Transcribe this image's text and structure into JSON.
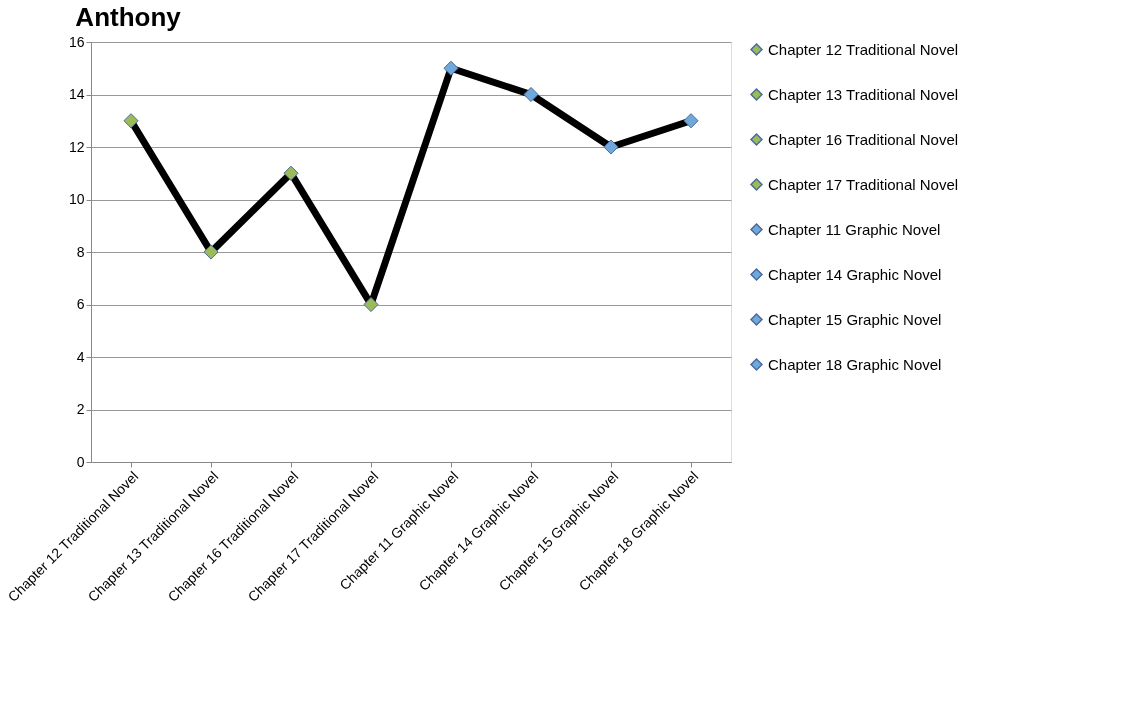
{
  "chart_data": {
    "type": "line",
    "title": "Anthony",
    "categories": [
      "Chapter 12 Traditional Novel",
      "Chapter 13 Traditional Novel",
      "Chapter 16 Traditional Novel",
      "Chapter 17 Traditional Novel",
      "Chapter 11 Graphic Novel",
      "Chapter 14 Graphic Novel",
      "Chapter 15 Graphic Novel",
      "Chapter 18 Graphic Novel"
    ],
    "series": [
      {
        "color": "#000000",
        "marker": "none",
        "values": [
          13,
          8,
          11,
          6,
          15,
          14,
          12,
          13
        ]
      },
      {
        "type": "scatter",
        "name": "Chapter 12 Traditional Novel",
        "color": "#9bbb59",
        "values": [
          13,
          null,
          null,
          null,
          null,
          null,
          null,
          null
        ]
      },
      {
        "type": "scatter",
        "name": "Chapter 13 Traditional Novel",
        "color": "#9bbb59",
        "values": [
          null,
          8,
          null,
          null,
          null,
          null,
          null,
          null
        ]
      },
      {
        "type": "scatter",
        "name": "Chapter 16 Traditional Novel",
        "color": "#9bbb59",
        "values": [
          null,
          null,
          11,
          null,
          null,
          null,
          null,
          null
        ]
      },
      {
        "type": "scatter",
        "name": "Chapter 17 Traditional Novel",
        "color": "#9bbb59",
        "values": [
          null,
          null,
          null,
          6,
          null,
          null,
          null,
          null
        ]
      },
      {
        "type": "scatter",
        "name": "Chapter 11 Graphic Novel",
        "color": "#6fa8dc",
        "values": [
          null,
          null,
          null,
          null,
          15,
          null,
          null,
          null
        ]
      },
      {
        "type": "scatter",
        "name": "Chapter 14 Graphic Novel",
        "color": "#6fa8dc",
        "values": [
          null,
          null,
          null,
          null,
          null,
          14,
          null,
          null
        ]
      },
      {
        "type": "scatter",
        "name": "Chapter 15 Graphic Novel",
        "color": "#6fa8dc",
        "values": [
          null,
          null,
          null,
          null,
          null,
          null,
          12,
          null
        ]
      },
      {
        "type": "scatter",
        "name": "Chapter 18 Graphic Novel",
        "color": "#6fa8dc",
        "values": [
          null,
          null,
          null,
          null,
          null,
          null,
          null,
          13
        ]
      }
    ],
    "ylim": [
      0,
      16
    ],
    "yticks": [
      0,
      2,
      4,
      6,
      8,
      10,
      12,
      14,
      16
    ],
    "grid": "y",
    "legend": "right",
    "marker": "diamond",
    "line_style": "solid"
  }
}
